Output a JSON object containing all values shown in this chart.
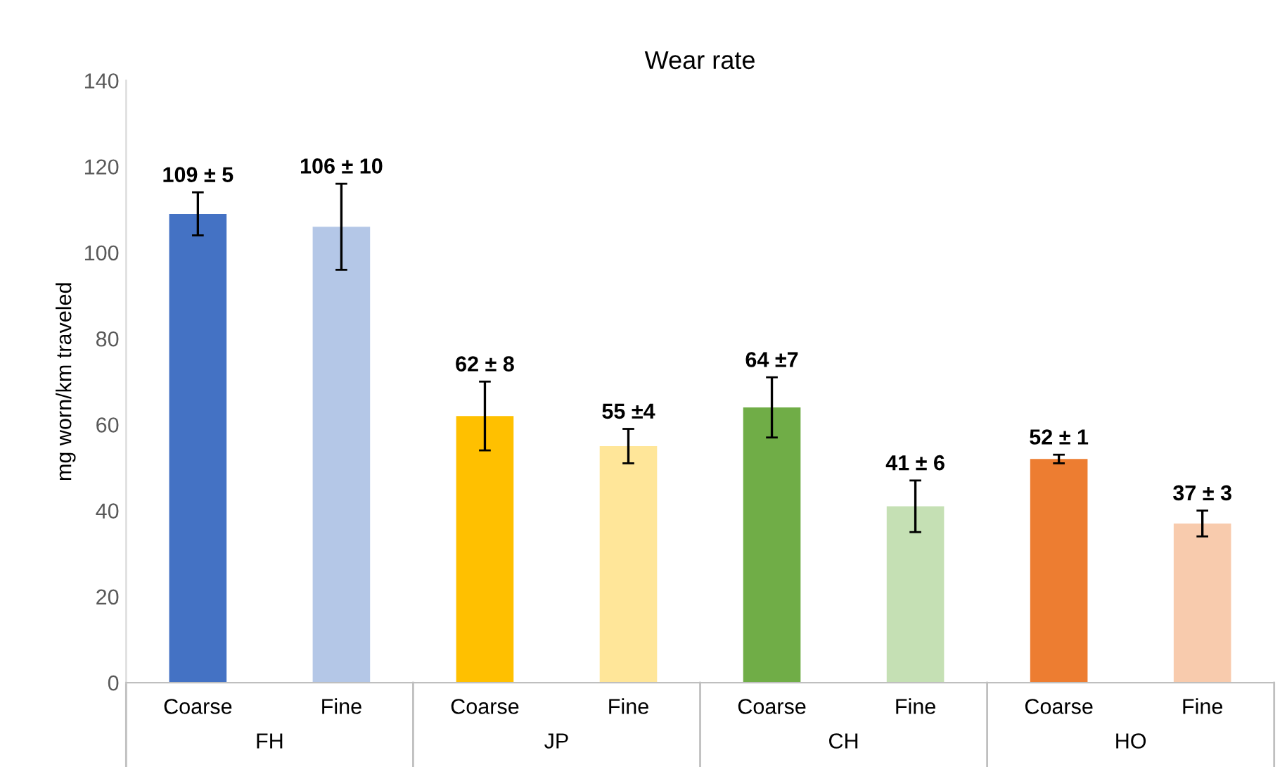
{
  "chart_data": {
    "type": "bar",
    "title": "Wear rate",
    "ylabel": "mg worn/km traveled",
    "categories": [
      "Coarse",
      "Fine",
      "Coarse",
      "Fine",
      "Coarse",
      "Fine",
      "Coarse",
      "Fine"
    ],
    "values": [
      109,
      106,
      62,
      55,
      64,
      41,
      52,
      37
    ],
    "errors": [
      5,
      10,
      8,
      4,
      7,
      6,
      1,
      3
    ],
    "value_labels": [
      "109 ± 5",
      "106 ± 10",
      "62 ± 8",
      "55 ±4",
      "64 ±7",
      "41 ± 6",
      "52 ± 1",
      "37 ± 3"
    ],
    "colors": [
      "#4472c4",
      "#b4c7e7",
      "#ffc000",
      "#ffe699",
      "#70ad47",
      "#c5e0b4",
      "#ed7d31",
      "#f8cbad"
    ],
    "annotations": [
      "FH",
      "JP",
      "CH",
      "HO"
    ],
    "ylim": [
      0,
      140
    ],
    "yticks": [
      0,
      20,
      40,
      60,
      80,
      100,
      120,
      140
    ],
    "grid": false
  }
}
